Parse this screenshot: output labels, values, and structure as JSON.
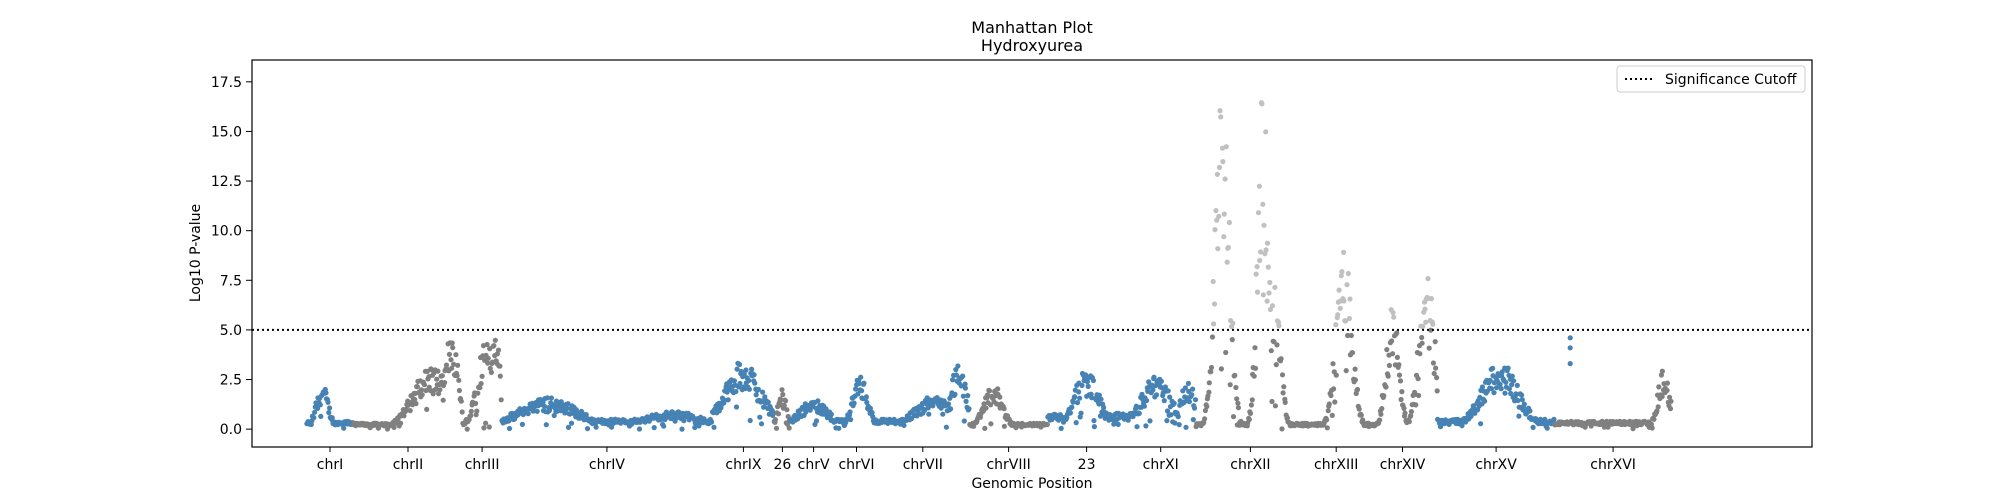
{
  "chart_data": {
    "type": "scatter",
    "title": "Manhattan Plot",
    "subtitle": "Hydroxyurea",
    "xlabel": "Genomic Position",
    "ylabel": "Log10 P-value",
    "ylim": [
      -0.9,
      18.6
    ],
    "yticks": [
      0.0,
      2.5,
      5.0,
      7.5,
      10.0,
      12.5,
      15.0,
      17.5
    ],
    "ytick_labels": [
      "0.0",
      "2.5",
      "5.0",
      "7.5",
      "10.0",
      "12.5",
      "15.0",
      "17.5"
    ],
    "grid": false,
    "legend_position": "top-right",
    "legend": [
      {
        "label": "Significance Cutoff",
        "style": "dotted"
      }
    ],
    "significance_cutoff": 5.0,
    "colors": {
      "blue": "#4682b4",
      "grey": "#808080",
      "significant": "#c0c0c0"
    },
    "chromosomes": [
      {
        "label": "chrI",
        "start": 0.035,
        "end": 0.065,
        "color": "blue",
        "peaks": [
          [
            0.045,
            2.3,
            0.004
          ]
        ],
        "base": 0.4
      },
      {
        "label": "chrII",
        "start": 0.065,
        "end": 0.135,
        "color": "grey",
        "peaks": [
          [
            0.115,
            3.2,
            0.012
          ],
          [
            0.128,
            5.3,
            0.004
          ]
        ],
        "base": 0.3
      },
      {
        "label": "chrIII",
        "start": 0.135,
        "end": 0.16,
        "color": "grey",
        "peaks": [
          [
            0.15,
            4.6,
            0.006
          ],
          [
            0.156,
            5.5,
            0.003
          ]
        ],
        "base": 0.3
      },
      {
        "label": "chrIV",
        "start": 0.16,
        "end": 0.295,
        "color": "blue",
        "peaks": [
          [
            0.19,
            1.6,
            0.02
          ],
          [
            0.27,
            0.9,
            0.02
          ]
        ],
        "base": 0.5
      },
      {
        "label": "chrIX",
        "start": 0.295,
        "end": 0.335,
        "color": "blue",
        "peaks": [
          [
            0.315,
            3.5,
            0.012
          ]
        ],
        "base": 1.0
      },
      {
        "label": "26",
        "start": 0.335,
        "end": 0.345,
        "color": "grey",
        "peaks": [
          [
            0.34,
            2.0,
            0.003
          ]
        ],
        "base": 0.6
      },
      {
        "label": "chrV",
        "start": 0.345,
        "end": 0.375,
        "color": "blue",
        "peaks": [
          [
            0.36,
            1.5,
            0.01
          ]
        ],
        "base": 0.5
      },
      {
        "label": "chrVI",
        "start": 0.375,
        "end": 0.4,
        "color": "blue",
        "peaks": [
          [
            0.39,
            2.7,
            0.005
          ]
        ],
        "base": 0.5
      },
      {
        "label": "chrVII",
        "start": 0.4,
        "end": 0.46,
        "color": "blue",
        "peaks": [
          [
            0.44,
            1.8,
            0.015
          ],
          [
            0.453,
            3.4,
            0.005
          ]
        ],
        "base": 0.5
      },
      {
        "label": "chrVIII",
        "start": 0.46,
        "end": 0.51,
        "color": "grey",
        "peaks": [
          [
            0.475,
            2.3,
            0.006
          ]
        ],
        "base": 0.3
      },
      {
        "label": "23",
        "start": 0.51,
        "end": 0.56,
        "color": "blue",
        "peaks": [
          [
            0.535,
            3.0,
            0.008
          ]
        ],
        "base": 0.8
      },
      {
        "label": "chrXI",
        "start": 0.56,
        "end": 0.605,
        "color": "blue",
        "peaks": [
          [
            0.58,
            2.8,
            0.01
          ],
          [
            0.6,
            2.5,
            0.005
          ]
        ],
        "base": 0.8
      },
      {
        "label": "chrXII",
        "start": 0.605,
        "end": 0.675,
        "color": "grey",
        "peaks": [
          [
            0.622,
            17.6,
            0.0045
          ],
          [
            0.648,
            17.1,
            0.0035
          ],
          [
            0.655,
            8.0,
            0.004
          ]
        ],
        "base": 0.3
      },
      {
        "label": "chrXIII",
        "start": 0.675,
        "end": 0.715,
        "color": "grey",
        "peaks": [
          [
            0.7,
            9.5,
            0.005
          ]
        ],
        "base": 0.3
      },
      {
        "label": "chrXIV",
        "start": 0.715,
        "end": 0.76,
        "color": "grey",
        "peaks": [
          [
            0.731,
            6.3,
            0.004
          ],
          [
            0.753,
            8.5,
            0.005
          ]
        ],
        "base": 0.3
      },
      {
        "label": "chrXV",
        "start": 0.76,
        "end": 0.835,
        "color": "blue",
        "peaks": [
          [
            0.8,
            3.4,
            0.012
          ]
        ],
        "base": 0.5
      },
      {
        "label": "chrXVI",
        "start": 0.835,
        "end": 0.91,
        "color": "grey",
        "peaks": [
          [
            0.905,
            3.0,
            0.004
          ]
        ],
        "base": 0.4
      }
    ],
    "extra_points": [
      {
        "x": 0.845,
        "y": 4.6,
        "color": "blue"
      },
      {
        "x": 0.845,
        "y": 4.1,
        "color": "blue"
      },
      {
        "x": 0.845,
        "y": 3.3,
        "color": "blue"
      }
    ]
  }
}
